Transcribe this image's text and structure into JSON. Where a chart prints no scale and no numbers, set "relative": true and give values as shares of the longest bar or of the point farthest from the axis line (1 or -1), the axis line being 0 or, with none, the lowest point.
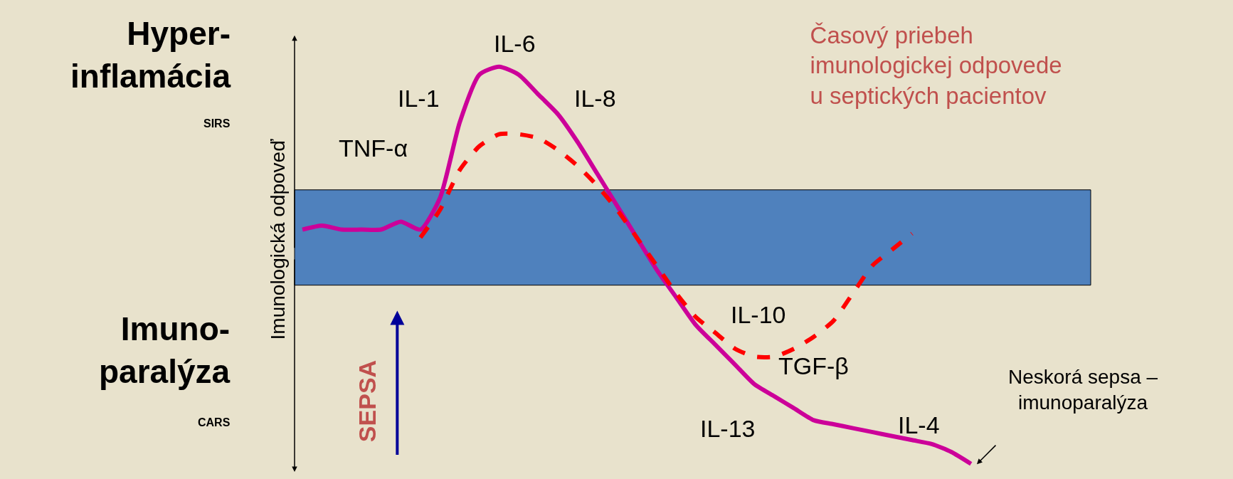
{
  "chart_data": {
    "type": "line",
    "relative": true,
    "title": "Časový priebeh\nimunologickej odpovede\nu septických pacientov",
    "ylabel": "Imunologická odpoveď",
    "categories": [
      null,
      null,
      null,
      null,
      null,
      null,
      null,
      null,
      null,
      null,
      null,
      null,
      null,
      null,
      null,
      null,
      null,
      null,
      null,
      null,
      null,
      null,
      null,
      null,
      null,
      null,
      null,
      null,
      null,
      null,
      null,
      null,
      null,
      null,
      null
    ],
    "series": [
      {
        "color": "#cc0099",
        "line_style": "solid",
        "values": [
          0.59,
          0.6,
          0.59,
          0.59,
          0.59,
          0.61,
          0.59,
          0.67,
          0.86,
          0.98,
          1,
          0.98,
          0.93,
          0.88,
          0.81,
          0.73,
          0.65,
          0.57,
          0.49,
          0.42,
          0.35,
          0.3,
          0.25,
          0.2,
          0.17,
          0.14,
          0.11,
          0.1,
          0.09,
          0.08,
          0.07,
          0.06,
          0.05,
          0.03,
          0
        ]
      },
      {
        "color": "#ff0000",
        "line_style": "dashed",
        "values": [
          null,
          null,
          null,
          null,
          null,
          null,
          0.57,
          0.64,
          0.74,
          0.8,
          0.83,
          0.83,
          0.82,
          0.79,
          0.75,
          0.7,
          0.64,
          0.57,
          0.5,
          0.43,
          0.37,
          0.33,
          0.29,
          0.27,
          0.27,
          0.29,
          0.32,
          0.36,
          0.43,
          0.5,
          0.54,
          0.58,
          null,
          null,
          null
        ]
      }
    ],
    "bands": [
      {
        "axis": "y",
        "from": 0.45,
        "to": 0.69,
        "color": "#4f81bd"
      }
    ],
    "annotations": [
      "IL-6",
      "IL-1",
      "IL-8",
      "TNF-α",
      "IL-10",
      "TGF-β",
      "IL-13",
      "IL-4",
      "Neskorá sepsa –\nimunoparalýza",
      "Hyper-\ninflamácia",
      "SIRS",
      "Imuno-\nparalýza",
      "CARS",
      "SEPSA"
    ],
    "legend": false,
    "grid": false
  }
}
